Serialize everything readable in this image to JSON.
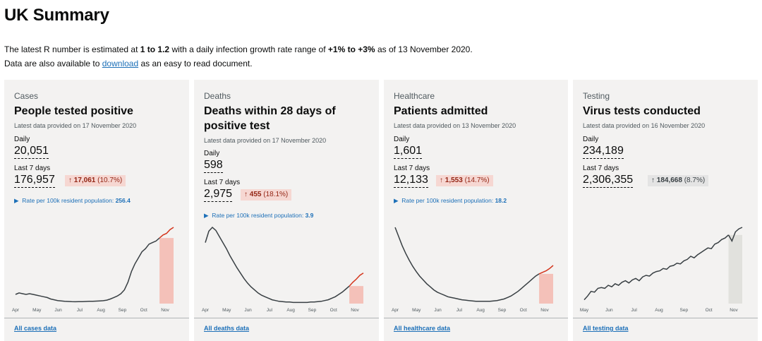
{
  "page": {
    "title": "UK Summary",
    "intro_line1": {
      "prefix": "The latest R number is estimated at ",
      "r_range": "1 to 1.2",
      "middle": " with a daily infection growth rate range of ",
      "growth_range": "+1% to +3%",
      "suffix": " as of 13 November 2020."
    },
    "intro_line2": {
      "prefix": "Data are also available to ",
      "link": "download",
      "suffix": " as an easy to read document."
    }
  },
  "colors": {
    "accent_link": "#1d70b8",
    "up_bg": "#f6d7d2",
    "up_text": "#942514",
    "neutral_bg": "#e4e4e4",
    "card_bg": "#f3f2f1",
    "line": "#383f43",
    "recent_line": "#d4351c",
    "recent_band": "#f4c1b9",
    "recent_band_neutral": "#e1e1dd"
  },
  "cards": [
    {
      "category": "Cases",
      "title": "People tested positive",
      "latest": "Latest data provided on 17 November 2020",
      "daily_label": "Daily",
      "daily_value": "20,051",
      "week_label": "Last 7 days",
      "week_value": "176,957",
      "change_arrow": "↑",
      "change_value": "17,061",
      "change_pct": "(10.7%)",
      "change_direction": "up",
      "rate_label": "Rate per 100k resident population: ",
      "rate_value": "256.4",
      "months": [
        "Apr",
        "May",
        "Jun",
        "Jul",
        "Aug",
        "Sep",
        "Oct",
        "Nov"
      ],
      "link": "All cases data",
      "series": [
        0.12,
        0.14,
        0.13,
        0.12,
        0.13,
        0.12,
        0.11,
        0.1,
        0.09,
        0.08,
        0.06,
        0.05,
        0.04,
        0.035,
        0.03,
        0.028,
        0.025,
        0.024,
        0.025,
        0.026,
        0.028,
        0.03,
        0.03,
        0.032,
        0.035,
        0.038,
        0.045,
        0.06,
        0.08,
        0.1,
        0.13,
        0.18,
        0.28,
        0.42,
        0.52,
        0.6,
        0.68,
        0.72,
        0.78,
        0.8,
        0.82,
        0.86,
        0.9,
        0.92,
        0.97,
        1.0
      ]
    },
    {
      "category": "Deaths",
      "title": "Deaths within 28 days of positive test",
      "latest": "Latest data provided on 17 November 2020",
      "daily_label": "Daily",
      "daily_value": "598",
      "week_label": "Last 7 days",
      "week_value": "2,975",
      "change_arrow": "↑",
      "change_value": "455",
      "change_pct": "(18.1%)",
      "change_direction": "up",
      "rate_label": "Rate per 100k resident population: ",
      "rate_value": "3.9",
      "months": [
        "Apr",
        "May",
        "Jun",
        "Jul",
        "Aug",
        "Sep",
        "Oct",
        "Nov"
      ],
      "link": "All deaths data",
      "series": [
        0.8,
        0.95,
        1.0,
        0.96,
        0.88,
        0.8,
        0.72,
        0.63,
        0.55,
        0.47,
        0.4,
        0.33,
        0.27,
        0.22,
        0.18,
        0.14,
        0.11,
        0.09,
        0.07,
        0.05,
        0.04,
        0.03,
        0.025,
        0.02,
        0.02,
        0.015,
        0.015,
        0.015,
        0.015,
        0.015,
        0.02,
        0.02,
        0.025,
        0.03,
        0.04,
        0.05,
        0.07,
        0.09,
        0.12,
        0.15,
        0.19,
        0.23,
        0.28,
        0.32,
        0.37,
        0.4
      ]
    },
    {
      "category": "Healthcare",
      "title": "Patients admitted",
      "latest": "Latest data provided on 13 November 2020",
      "daily_label": "Daily",
      "daily_value": "1,601",
      "week_label": "Last 7 days",
      "week_value": "12,133",
      "change_arrow": "↑",
      "change_value": "1,553",
      "change_pct": "(14.7%)",
      "change_direction": "up",
      "rate_label": "Rate per 100k resident population: ",
      "rate_value": "18.2",
      "months": [
        "Apr",
        "May",
        "Jun",
        "Jul",
        "Aug",
        "Sep",
        "Oct",
        "Nov"
      ],
      "link": "All healthcare data",
      "series": [
        1.0,
        0.88,
        0.76,
        0.66,
        0.57,
        0.49,
        0.42,
        0.36,
        0.31,
        0.26,
        0.22,
        0.18,
        0.15,
        0.13,
        0.11,
        0.09,
        0.08,
        0.07,
        0.06,
        0.05,
        0.045,
        0.04,
        0.035,
        0.03,
        0.03,
        0.03,
        0.03,
        0.03,
        0.035,
        0.04,
        0.05,
        0.06,
        0.08,
        0.1,
        0.13,
        0.16,
        0.2,
        0.24,
        0.28,
        0.32,
        0.36,
        0.39,
        0.41,
        0.43,
        0.46,
        0.5
      ]
    },
    {
      "category": "Testing",
      "title": "Virus tests conducted",
      "latest": "Latest data provided on 16 November 2020",
      "daily_label": "Daily",
      "daily_value": "234,189",
      "week_label": "Last 7 days",
      "week_value": "2,306,355",
      "change_arrow": "↑",
      "change_value": "184,668",
      "change_pct": "(8.7%)",
      "change_direction": "neutral",
      "rate_label": "",
      "rate_value": "",
      "months": [
        "May",
        "Jun",
        "Jul",
        "Aug",
        "Sep",
        "Oct",
        "Nov"
      ],
      "link": "All testing data",
      "series": [
        0.05,
        0.1,
        0.16,
        0.15,
        0.2,
        0.21,
        0.2,
        0.24,
        0.22,
        0.26,
        0.24,
        0.28,
        0.3,
        0.27,
        0.31,
        0.33,
        0.3,
        0.35,
        0.37,
        0.36,
        0.4,
        0.42,
        0.43,
        0.46,
        0.45,
        0.49,
        0.5,
        0.53,
        0.52,
        0.56,
        0.58,
        0.62,
        0.6,
        0.64,
        0.67,
        0.7,
        0.73,
        0.72,
        0.78,
        0.8,
        0.84,
        0.86,
        0.9,
        0.82,
        0.94,
        0.98,
        1.0
      ]
    }
  ]
}
